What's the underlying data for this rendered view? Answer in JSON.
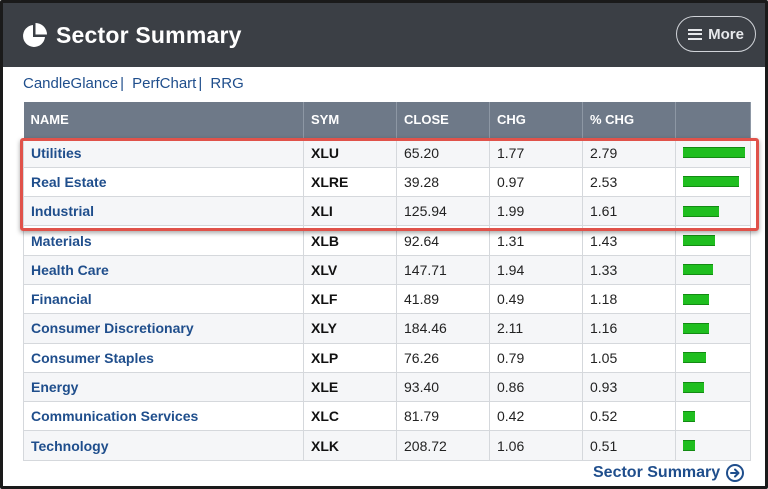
{
  "header": {
    "title": "Sector Summary",
    "more_label": "More"
  },
  "links": [
    "CandleGlance",
    "PerfChart",
    "RRG"
  ],
  "table": {
    "columns": [
      "NAME",
      "SYM",
      "CLOSE",
      "CHG",
      "% CHG",
      ""
    ],
    "rows": [
      {
        "name": "Utilities",
        "sym": "XLU",
        "close": "65.20",
        "chg": "1.77",
        "pct": "2.79",
        "pct_value": 2.79
      },
      {
        "name": "Real Estate",
        "sym": "XLRE",
        "close": "39.28",
        "chg": "0.97",
        "pct": "2.53",
        "pct_value": 2.53
      },
      {
        "name": "Industrial",
        "sym": "XLI",
        "close": "125.94",
        "chg": "1.99",
        "pct": "1.61",
        "pct_value": 1.61
      },
      {
        "name": "Materials",
        "sym": "XLB",
        "close": "92.64",
        "chg": "1.31",
        "pct": "1.43",
        "pct_value": 1.43
      },
      {
        "name": "Health Care",
        "sym": "XLV",
        "close": "147.71",
        "chg": "1.94",
        "pct": "1.33",
        "pct_value": 1.33
      },
      {
        "name": "Financial",
        "sym": "XLF",
        "close": "41.89",
        "chg": "0.49",
        "pct": "1.18",
        "pct_value": 1.18
      },
      {
        "name": "Consumer Discretionary",
        "sym": "XLY",
        "close": "184.46",
        "chg": "2.11",
        "pct": "1.16",
        "pct_value": 1.16
      },
      {
        "name": "Consumer Staples",
        "sym": "XLP",
        "close": "76.26",
        "chg": "0.79",
        "pct": "1.05",
        "pct_value": 1.05
      },
      {
        "name": "Energy",
        "sym": "XLE",
        "close": "93.40",
        "chg": "0.86",
        "pct": "0.93",
        "pct_value": 0.93
      },
      {
        "name": "Communication Services",
        "sym": "XLC",
        "close": "81.79",
        "chg": "0.42",
        "pct": "0.52",
        "pct_value": 0.52
      },
      {
        "name": "Technology",
        "sym": "XLK",
        "close": "208.72",
        "chg": "1.06",
        "pct": "0.51",
        "pct_value": 0.51
      }
    ]
  },
  "footer": {
    "link_label": "Sector Summary"
  },
  "icons": {
    "logo": "pie-chart-icon",
    "menu": "hamburger-menu-icon",
    "arrow": "arrow-right-circle-icon"
  },
  "colors": {
    "header_bg": "#3b3f45",
    "table_header_bg": "#6e7988",
    "link": "#1f4e8c",
    "bar": "#1fbe1f",
    "highlight": "#e0524a"
  }
}
